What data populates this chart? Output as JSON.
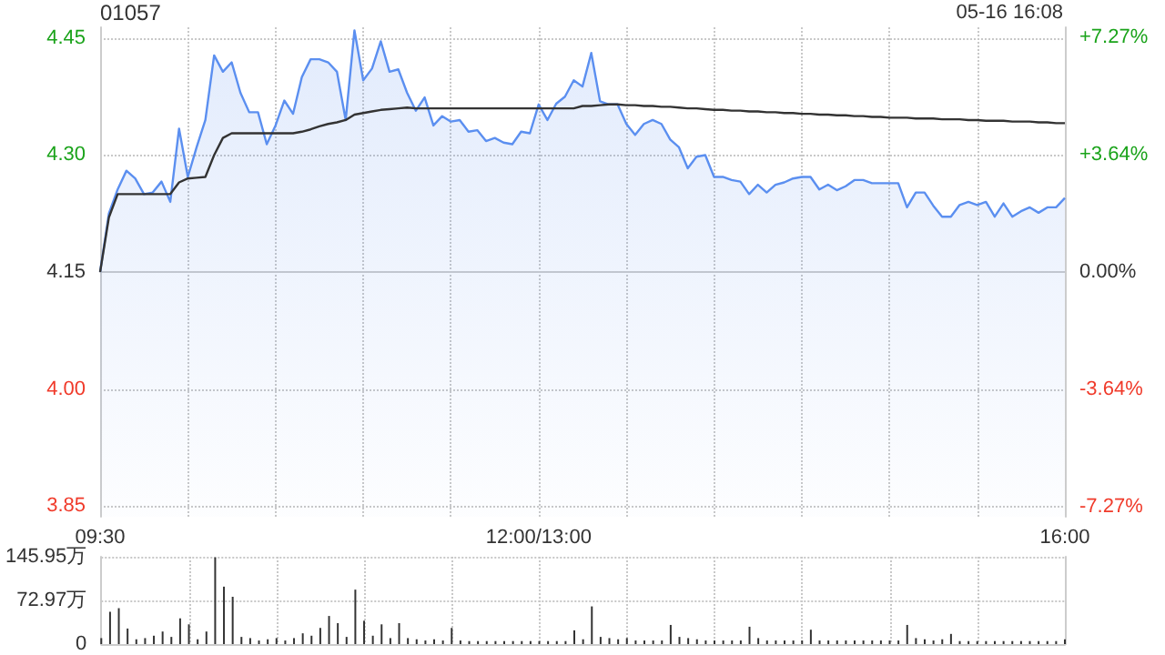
{
  "chart_data": [
    {
      "type": "line",
      "title": "01057",
      "annotations": [
        "05-16 16:08"
      ],
      "categories": [
        "09:30",
        null,
        null,
        null,
        null,
        null,
        null,
        null,
        null,
        null,
        null,
        null,
        null,
        null,
        null,
        null,
        null,
        null,
        null,
        null,
        null,
        null,
        null,
        null,
        null,
        null,
        null,
        null,
        null,
        null,
        null,
        null,
        null,
        null,
        null,
        null,
        null,
        null,
        null,
        null,
        null,
        null,
        null,
        null,
        null,
        null,
        null,
        null,
        null,
        null,
        "12:00/13:00",
        null,
        null,
        null,
        null,
        null,
        null,
        null,
        null,
        null,
        null,
        null,
        null,
        null,
        null,
        null,
        null,
        null,
        null,
        null,
        null,
        null,
        null,
        null,
        null,
        null,
        null,
        null,
        null,
        null,
        null,
        null,
        null,
        null,
        null,
        null,
        null,
        null,
        null,
        null,
        null,
        null,
        null,
        null,
        null,
        null,
        null,
        null,
        null,
        null,
        null,
        null,
        null,
        null,
        null,
        null,
        null,
        null,
        null,
        null,
        "16:00"
      ],
      "series": [
        {
          "type": "area",
          "color": "#5b8ff0",
          "values": [
            4.15,
            4.225,
            4.256,
            4.28,
            4.27,
            4.25,
            4.252,
            4.266,
            4.24,
            4.334,
            4.272,
            4.31,
            4.345,
            4.428,
            4.407,
            4.419,
            4.38,
            4.355,
            4.355,
            4.314,
            4.338,
            4.37,
            4.353,
            4.4,
            4.423,
            4.423,
            4.419,
            4.407,
            4.345,
            4.46,
            4.396,
            4.411,
            4.446,
            4.407,
            4.41,
            4.38,
            4.357,
            4.374,
            4.338,
            4.35,
            4.343,
            4.345,
            4.33,
            4.332,
            4.318,
            4.322,
            4.316,
            4.314,
            4.33,
            4.328,
            4.365,
            4.345,
            4.366,
            4.375,
            4.396,
            4.388,
            4.431,
            4.369,
            4.365,
            4.365,
            4.34,
            4.326,
            4.34,
            4.345,
            4.34,
            4.32,
            4.31,
            4.283,
            4.298,
            4.3,
            4.272,
            4.272,
            4.268,
            4.266,
            4.25,
            4.262,
            4.252,
            4.262,
            4.265,
            4.27,
            4.272,
            4.272,
            4.256,
            4.262,
            4.255,
            4.26,
            4.268,
            4.268,
            4.264,
            4.264,
            4.264,
            4.264,
            4.233,
            4.252,
            4.252,
            4.235,
            4.221,
            4.221,
            4.236,
            4.24,
            4.236,
            4.24,
            4.221,
            4.238,
            4.221,
            4.228,
            4.233,
            4.226,
            4.233,
            4.233,
            4.245
          ]
        },
        {
          "type": "line",
          "color": "#333333",
          "values": [
            4.15,
            4.22,
            4.25,
            4.25,
            4.25,
            4.25,
            4.25,
            4.25,
            4.25,
            4.265,
            4.27,
            4.271,
            4.272,
            4.3,
            4.322,
            4.328,
            4.328,
            4.328,
            4.328,
            4.328,
            4.328,
            4.328,
            4.328,
            4.33,
            4.333,
            4.337,
            4.34,
            4.342,
            4.345,
            4.352,
            4.354,
            4.356,
            4.358,
            4.359,
            4.36,
            4.361,
            4.36,
            4.36,
            4.36,
            4.36,
            4.36,
            4.36,
            4.36,
            4.36,
            4.36,
            4.36,
            4.36,
            4.36,
            4.36,
            4.36,
            4.36,
            4.36,
            4.36,
            4.36,
            4.36,
            4.363,
            4.363,
            4.364,
            4.365,
            4.365,
            4.364,
            4.364,
            4.363,
            4.363,
            4.362,
            4.362,
            4.361,
            4.36,
            4.36,
            4.359,
            4.358,
            4.358,
            4.357,
            4.357,
            4.356,
            4.356,
            4.355,
            4.355,
            4.354,
            4.354,
            4.353,
            4.353,
            4.352,
            4.352,
            4.351,
            4.351,
            4.35,
            4.35,
            4.349,
            4.349,
            4.348,
            4.348,
            4.348,
            4.347,
            4.347,
            4.347,
            4.346,
            4.346,
            4.346,
            4.345,
            4.345,
            4.344,
            4.344,
            4.344,
            4.343,
            4.343,
            4.343,
            4.342,
            4.342,
            4.341,
            4.341
          ]
        }
      ],
      "ylim": [
        3.836,
        4.464
      ],
      "yticks": [
        {
          "value": 3.85,
          "label": "3.85"
        },
        {
          "value": 4,
          "label": "4.00"
        },
        {
          "value": 4.15,
          "label": "4.15"
        },
        {
          "value": 4.3,
          "label": "4.30"
        },
        {
          "value": 4.45,
          "label": "4.45"
        }
      ],
      "y2lim": [
        -7.57,
        7.57
      ],
      "y2ticks": [
        {
          "value": -7.27,
          "label": "-7.27%"
        },
        {
          "value": -3.64,
          "label": "-3.64%"
        },
        {
          "value": 0,
          "label": "0.00%"
        },
        {
          "value": 3.64,
          "label": "+3.64%"
        },
        {
          "value": 7.27,
          "label": "+7.27%"
        }
      ],
      "grid": true,
      "marker": "none",
      "line_style": "solid"
    },
    {
      "type": "bar",
      "color": "#333333",
      "categories": [
        null,
        null,
        null,
        null,
        null,
        null,
        null,
        null,
        null,
        null,
        null,
        null,
        null,
        null,
        null,
        null,
        null,
        null,
        null,
        null,
        null,
        null,
        null,
        null,
        null,
        null,
        null,
        null,
        null,
        null,
        null,
        null,
        null,
        null,
        null,
        null,
        null,
        null,
        null,
        null,
        null,
        null,
        null,
        null,
        null,
        null,
        null,
        null,
        null,
        null,
        null,
        null,
        null,
        null,
        null,
        null,
        null,
        null,
        null,
        null,
        null,
        null,
        null,
        null,
        null,
        null,
        null,
        null,
        null,
        null,
        null,
        null,
        null,
        null,
        null,
        null,
        null,
        null,
        null,
        null,
        null,
        null,
        null,
        null,
        null,
        null,
        null,
        null,
        null,
        null,
        null,
        null,
        null,
        null,
        null,
        null,
        null,
        null,
        null,
        null,
        null,
        null,
        null,
        null,
        null,
        null,
        null,
        null,
        null,
        null,
        null
      ],
      "values": [
        10,
        54,
        60,
        26,
        8,
        10,
        14,
        21,
        12,
        43,
        33,
        8,
        21,
        145,
        96,
        79,
        12,
        10,
        6,
        8,
        10,
        6,
        10,
        18,
        14,
        27,
        47,
        35,
        12,
        91,
        39,
        14,
        33,
        10,
        35,
        10,
        8,
        6,
        8,
        6,
        27,
        6,
        5,
        5,
        5,
        5,
        5,
        5,
        5,
        5,
        5,
        5,
        5,
        5,
        23,
        8,
        63,
        12,
        10,
        8,
        10,
        6,
        6,
        6,
        6,
        32,
        12,
        10,
        8,
        6,
        6,
        6,
        6,
        6,
        29,
        10,
        6,
        6,
        6,
        6,
        6,
        24,
        6,
        6,
        6,
        6,
        6,
        6,
        6,
        6,
        6,
        6,
        32,
        10,
        8,
        6,
        8,
        17,
        5,
        5,
        5,
        5,
        5,
        5,
        5,
        5,
        5,
        5,
        5,
        5,
        8
      ],
      "ylim": [
        0,
        145.95
      ],
      "yticks": [
        {
          "value": 0,
          "label": "0"
        },
        {
          "value": 72.97,
          "label": "72.97万"
        },
        {
          "value": 145.95,
          "label": "145.95万"
        }
      ],
      "tick_labels": "y",
      "grid": true
    }
  ]
}
